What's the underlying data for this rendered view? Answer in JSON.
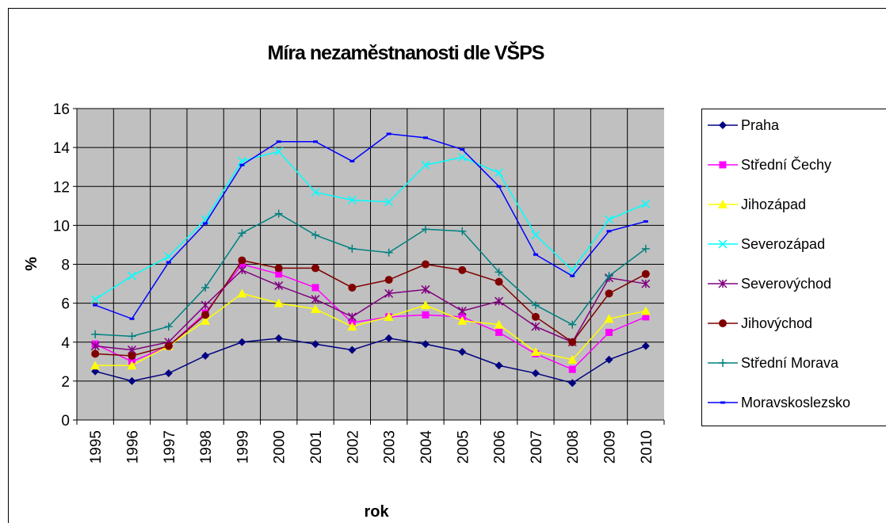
{
  "chart_data": {
    "type": "line",
    "title": "Míra nezaměstnanosti dle VŠPS",
    "x_label": "rok",
    "y_label": "%",
    "categories": [
      "1995",
      "1996",
      "1997",
      "1998",
      "1999",
      "2000",
      "2001",
      "2002",
      "2003",
      "2004",
      "2005",
      "2006",
      "2007",
      "2008",
      "2009",
      "2010"
    ],
    "ylim": [
      0,
      16
    ],
    "yticks": [
      0,
      2,
      4,
      6,
      8,
      10,
      12,
      14,
      16
    ],
    "grid": true,
    "legend": "right",
    "series": [
      {
        "name": "Praha",
        "color": "#000080",
        "marker": "diamond",
        "values": [
          2.5,
          2.0,
          2.4,
          3.3,
          4.0,
          4.2,
          3.9,
          3.6,
          4.2,
          3.9,
          3.5,
          2.8,
          2.4,
          1.9,
          3.1,
          3.8
        ]
      },
      {
        "name": "Střední Čechy",
        "color": "#ff00ff",
        "marker": "square",
        "values": [
          3.9,
          3.0,
          3.8,
          5.5,
          8.0,
          7.5,
          6.8,
          5.0,
          5.3,
          5.4,
          5.3,
          4.5,
          3.4,
          2.6,
          4.5,
          5.3
        ]
      },
      {
        "name": "Jihozápad",
        "color": "#ffff00",
        "marker": "triangle",
        "values": [
          2.8,
          2.8,
          3.8,
          5.1,
          6.5,
          6.0,
          5.7,
          4.8,
          5.3,
          5.9,
          5.1,
          4.9,
          3.5,
          3.1,
          5.2,
          5.6
        ]
      },
      {
        "name": "Severozápad",
        "color": "#00ffff",
        "marker": "x",
        "values": [
          6.2,
          7.4,
          8.4,
          10.3,
          13.3,
          13.8,
          11.7,
          11.3,
          11.2,
          13.1,
          13.5,
          12.7,
          9.5,
          7.7,
          10.3,
          11.1
        ]
      },
      {
        "name": "Severovýchod",
        "color": "#800080",
        "marker": "star",
        "values": [
          3.8,
          3.6,
          4.0,
          5.9,
          7.7,
          6.9,
          6.2,
          5.3,
          6.5,
          6.7,
          5.6,
          6.1,
          4.8,
          4.0,
          7.3,
          7.0
        ]
      },
      {
        "name": "Jihovýchod",
        "color": "#800000",
        "marker": "circle",
        "values": [
          3.4,
          3.3,
          3.8,
          5.4,
          8.2,
          7.8,
          7.8,
          6.8,
          7.2,
          8.0,
          7.7,
          7.1,
          5.3,
          4.0,
          6.5,
          7.5
        ]
      },
      {
        "name": "Střední Morava",
        "color": "#008080",
        "marker": "plus",
        "values": [
          4.4,
          4.3,
          4.8,
          6.8,
          9.6,
          10.6,
          9.5,
          8.8,
          8.6,
          9.8,
          9.7,
          7.6,
          5.9,
          4.9,
          7.4,
          8.8
        ]
      },
      {
        "name": "Moravskoslezsko",
        "color": "#0000ff",
        "marker": "dash",
        "values": [
          5.9,
          5.2,
          8.1,
          10.1,
          13.1,
          14.3,
          14.3,
          13.3,
          14.7,
          14.5,
          13.9,
          12.0,
          8.5,
          7.4,
          9.7,
          10.2
        ]
      }
    ]
  }
}
